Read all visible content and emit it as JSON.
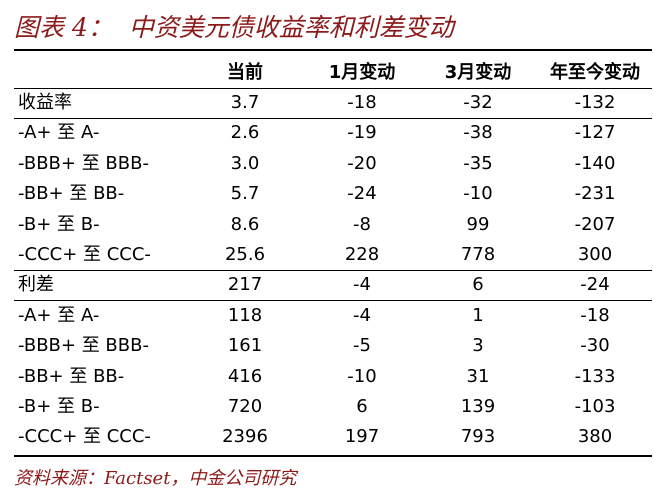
{
  "header": {
    "title": "图表 4：  中资美元债收益率和利差变动"
  },
  "table": {
    "columns": [
      "当前",
      "1月变动",
      "3月变动",
      "年至今变动"
    ],
    "rows": [
      [
        "收益率",
        "3.7",
        "-18",
        "-32",
        "-132"
      ],
      [
        "-A+ 至 A-",
        "2.6",
        "-19",
        "-38",
        "-127"
      ],
      [
        "-BBB+ 至 BBB-",
        "3.0",
        "-20",
        "-35",
        "-140"
      ],
      [
        "-BB+ 至 BB-",
        "5.7",
        "-24",
        "-10",
        "-231"
      ],
      [
        "-B+ 至 B-",
        "8.6",
        "-8",
        "99",
        "-207"
      ],
      [
        "-CCC+ 至 CCC-",
        "25.6",
        "228",
        "778",
        "300"
      ],
      [
        "利差",
        "217",
        "-4",
        "6",
        "-24"
      ],
      [
        "-A+ 至 A-",
        "118",
        "-4",
        "1",
        "-18"
      ],
      [
        "-BBB+ 至 BBB-",
        "161",
        "-5",
        "3",
        "-30"
      ],
      [
        "-BB+ 至 BB-",
        "416",
        "-10",
        "31",
        "-133"
      ],
      [
        "-B+ 至 B-",
        "720",
        "6",
        "139",
        "-103"
      ],
      [
        "-CCC+ 至 CCC-",
        "2396",
        "197",
        "793",
        "380"
      ]
    ]
  },
  "footer": {
    "source": "资料来源：Factset，中金公司研究"
  }
}
